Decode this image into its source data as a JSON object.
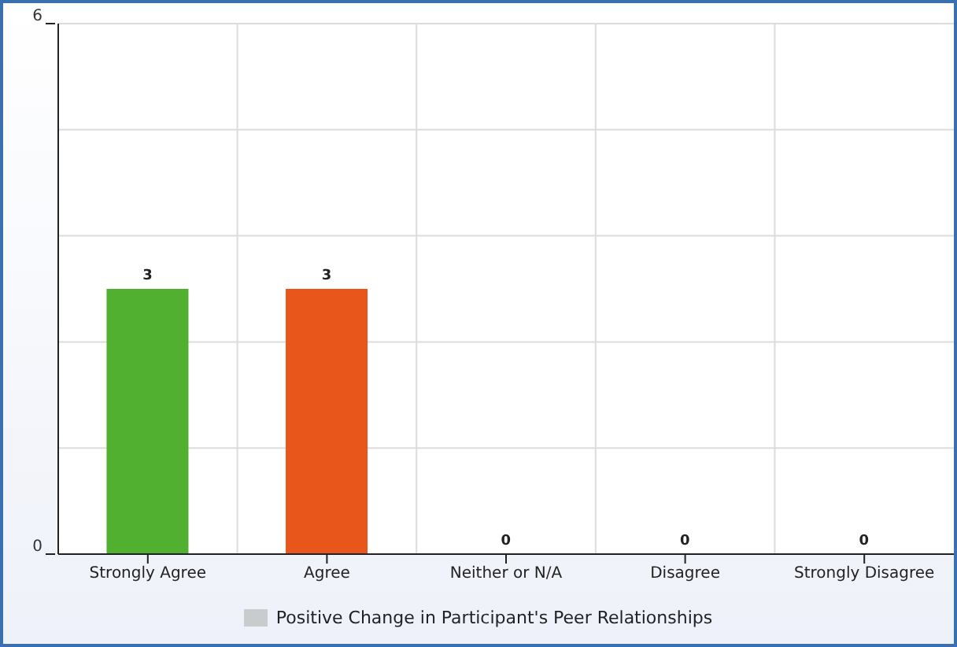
{
  "chart_data": {
    "type": "bar",
    "categories": [
      "Strongly Agree",
      "Agree",
      "Neither or N/A",
      "Disagree",
      "Strongly Disagree"
    ],
    "series": [
      {
        "name": "Positive Change in Participant's Peer Relationships",
        "color": "#c8cccc",
        "colors": [
          "#52b030",
          "#e8561c",
          "#52b030",
          "#e8561c",
          "#52b030"
        ],
        "values": [
          3,
          3,
          0,
          0,
          0
        ]
      }
    ],
    "ylim": [
      0,
      6
    ],
    "yticks": [
      0,
      {
        "value": 1.2,
        "label": null
      },
      {
        "value": 2.4,
        "label": null
      },
      {
        "value": 3.6,
        "label": null
      },
      {
        "value": 4.8,
        "label": null
      },
      6
    ],
    "grid": true,
    "legend": "bottom",
    "data_labels": true
  }
}
